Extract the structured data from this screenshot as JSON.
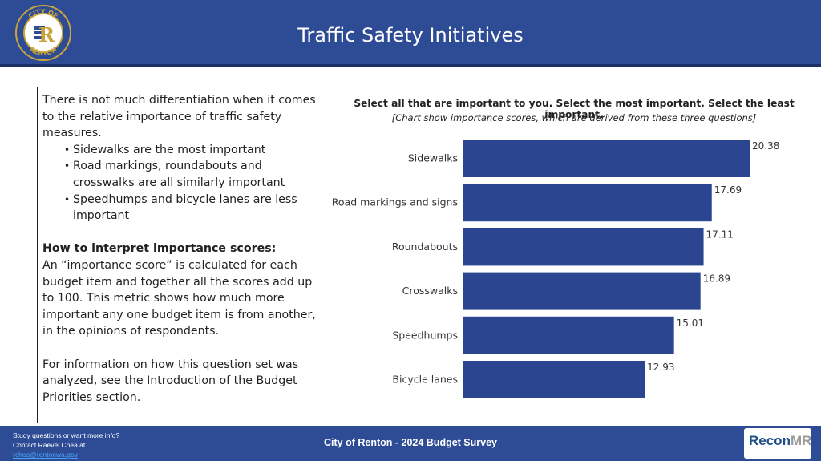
{
  "header": {
    "title": "Traffic Safety Initiatives",
    "seal_text_top": "CITY OF",
    "seal_text_bottom": "RENTON",
    "seal_letter": "R"
  },
  "textbox": {
    "intro": "There is not much differentiation when it comes to the relative importance of traffic safety measures.",
    "bullets": [
      "Sidewalks are the most important",
      "Road markings, roundabouts and crosswalks are all similarly important",
      "Speedhumps and bicycle lanes are less important"
    ],
    "interpret_heading": "How to interpret importance scores:",
    "interpret_body": " An “importance score” is calculated for each budget item and together all the scores add up to 100. This metric shows how much more important any one budget item is from another, in the opinions of respondents.",
    "more_info": "For information on how this question set was analyzed, see the Introduction of the Budget Priorities section."
  },
  "chart_data": {
    "type": "bar",
    "orientation": "horizontal",
    "title": "Select all that are important to you. Select the most important. Select the least important.",
    "subtitle": "[Chart show importance scores, which are derived from these three questions]",
    "categories": [
      "Sidewalks",
      "Road markings and signs",
      "Roundabouts",
      "Crosswalks",
      "Speedhumps",
      "Bicycle lanes"
    ],
    "values": [
      20.38,
      17.69,
      17.11,
      16.89,
      15.01,
      12.93
    ],
    "value_labels": [
      "20.38",
      "17.69",
      "17.11",
      "16.89",
      "15.01",
      "12.93"
    ],
    "xlim": [
      0,
      20.38
    ],
    "grid": false,
    "legend": "none",
    "bar_color": "#2b4590"
  },
  "footer": {
    "contact_line1": "Study questions or want more info?",
    "contact_line2": "Contact Raevel Chea at",
    "contact_email": "rchea@rentonwa.gov",
    "center_title": "City of Renton - 2024 Budget Survey",
    "logo_text_a": "Recon",
    "logo_text_b": "MR"
  },
  "colors": {
    "header_bg": "#2e4c95",
    "bar": "#2b4590",
    "seal_gold": "#c9a43a"
  }
}
